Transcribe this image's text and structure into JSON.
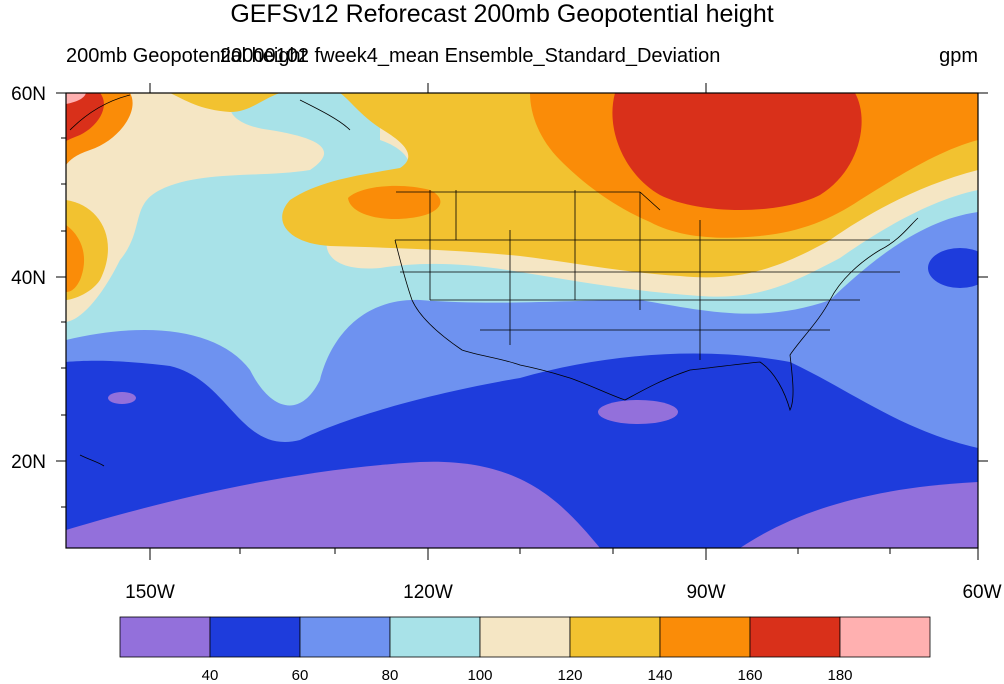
{
  "title": "GEFSv12 Reforecast 200mb Geopotential height",
  "subtitle_left": "200mb Geopotential height",
  "subtitle_center": "20000102 fweek4_mean Ensemble_Standard_Deviation",
  "units": "gpm",
  "axes": {
    "lat_labels": [
      "60N",
      "40N",
      "20N"
    ],
    "lon_labels": [
      "150W",
      "120W",
      "90W",
      "60W"
    ]
  },
  "colorbar": {
    "colors": [
      "#9370db",
      "#1e3cdc",
      "#6e92f0",
      "#a8e2e8",
      "#f5e6c4",
      "#f2c230",
      "#fa8c08",
      "#d9301a",
      "#ffb0b0"
    ],
    "tick_labels": [
      "40",
      "60",
      "80",
      "100",
      "120",
      "140",
      "160",
      "180"
    ]
  },
  "chart_data": {
    "type": "heatmap",
    "title": "GEFSv12 Reforecast 200mb Geopotential height",
    "variable": "200mb Geopotential height",
    "field": "20000102 fweek4_mean Ensemble_Standard_Deviation",
    "units": "gpm",
    "lon_range": [
      "160W",
      "60W"
    ],
    "lat_range": [
      "10N",
      "60N"
    ],
    "contour_levels": [
      40,
      60,
      80,
      100,
      120,
      140,
      160,
      180
    ],
    "legend_placement": "bottom"
  }
}
